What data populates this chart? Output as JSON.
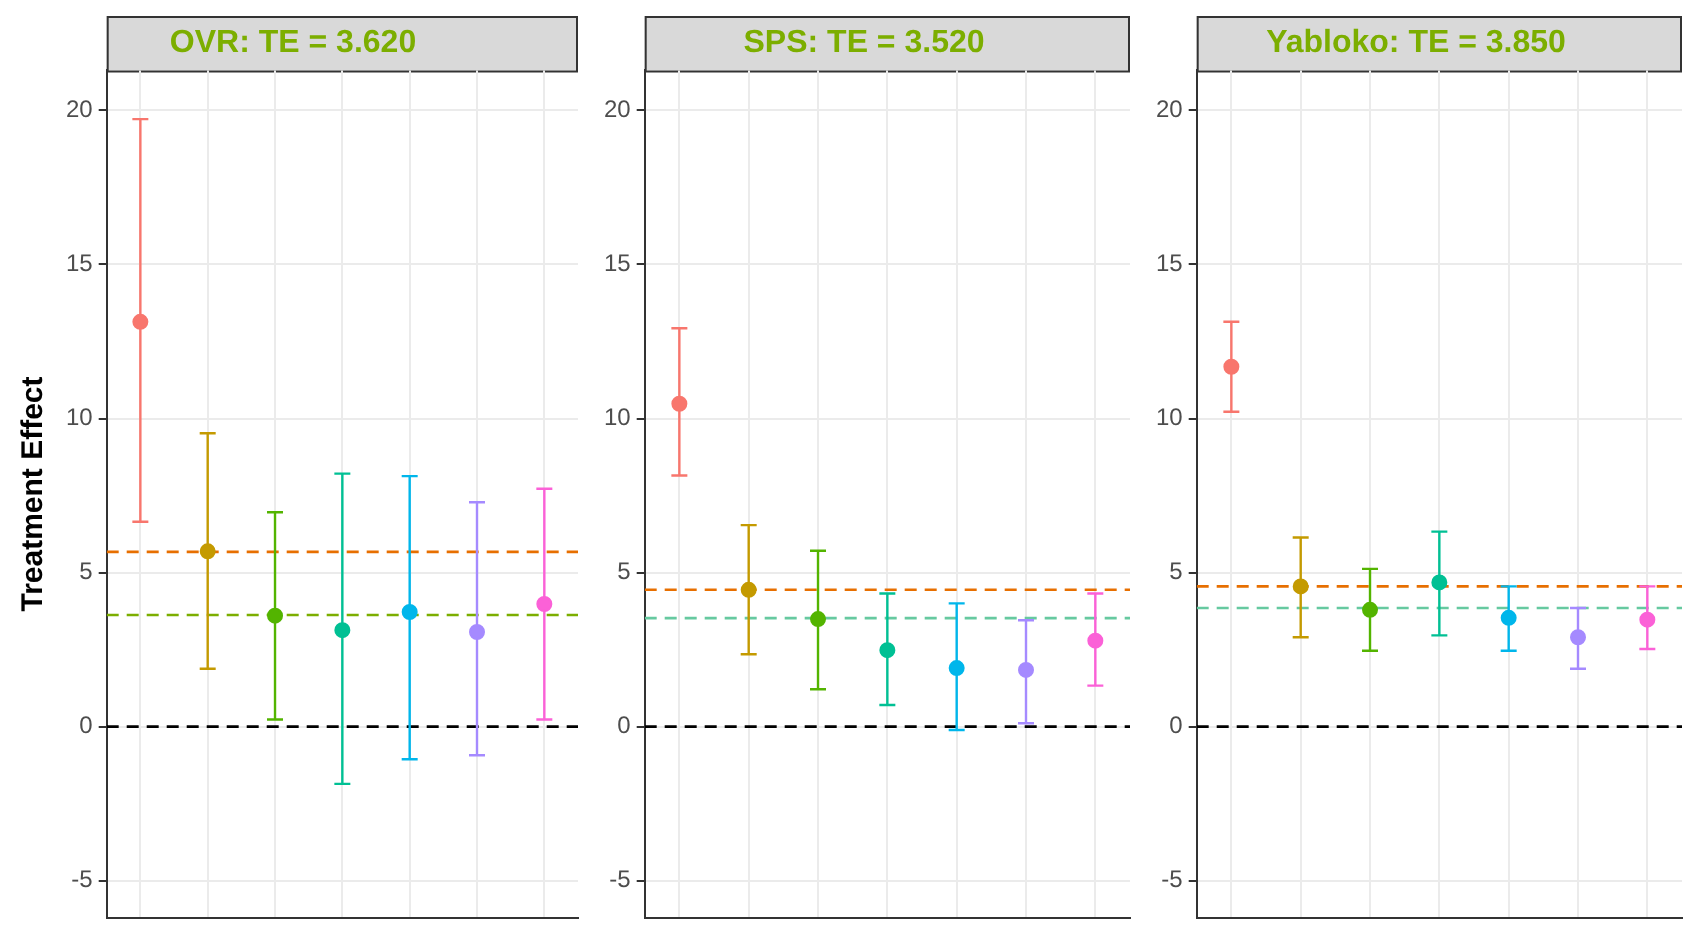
{
  "chart_data": [
    {
      "type": "scatter",
      "title": "OVR: TE = 3.620",
      "ylabel": "Treatment Effect",
      "categories": [
        null,
        null,
        null,
        null,
        null,
        null,
        null
      ],
      "values": [
        13.14,
        5.69,
        3.6,
        3.13,
        3.72,
        3.07,
        3.98
      ],
      "errors": [
        [
          6.65,
          19.72
        ],
        [
          1.88,
          9.52
        ],
        [
          0.23,
          6.96
        ],
        [
          -1.86,
          8.21
        ],
        [
          -1.06,
          8.13
        ],
        [
          -0.93,
          7.28
        ],
        [
          0.23,
          7.72
        ]
      ],
      "colors": [
        "#f8766d",
        "#c49a00",
        "#53b400",
        "#00c094",
        "#00b6eb",
        "#a58aff",
        "#fb61d7"
      ],
      "ylim": [
        -6.2,
        21.3
      ],
      "yticks": [
        -5,
        0,
        5,
        10,
        15,
        20
      ],
      "grid": true,
      "tick_labels": "y",
      "marker": "circle",
      "ref_lines": [
        {
          "axis": "y",
          "value": 0,
          "color": "#000000",
          "line_style": "dashed"
        },
        {
          "axis": "y",
          "value": 5.67,
          "color": "#e76f00",
          "line_style": "dashed"
        },
        {
          "axis": "y",
          "value": 3.62,
          "color": "#7cae00",
          "line_style": "dashed"
        }
      ]
    },
    {
      "type": "scatter",
      "title": "SPS: TE = 3.520",
      "categories": [
        null,
        null,
        null,
        null,
        null,
        null,
        null
      ],
      "values": [
        10.48,
        4.44,
        3.49,
        2.48,
        1.9,
        1.84,
        2.79
      ],
      "errors": [
        [
          8.15,
          12.93
        ],
        [
          2.35,
          6.54
        ],
        [
          1.21,
          5.71
        ],
        [
          0.7,
          4.32
        ],
        [
          -0.11,
          4.0
        ],
        [
          0.11,
          3.45
        ],
        [
          1.33,
          4.32
        ]
      ],
      "colors": [
        "#f8766d",
        "#c49a00",
        "#53b400",
        "#00c094",
        "#00b6eb",
        "#a58aff",
        "#fb61d7"
      ],
      "ylim": [
        -6.2,
        21.3
      ],
      "yticks": [
        -5,
        0,
        5,
        10,
        15,
        20
      ],
      "grid": true,
      "tick_labels": "y",
      "marker": "circle",
      "ref_lines": [
        {
          "axis": "y",
          "value": 0,
          "color": "#000000",
          "line_style": "dashed"
        },
        {
          "axis": "y",
          "value": 4.44,
          "color": "#e76f00",
          "line_style": "dashed"
        },
        {
          "axis": "y",
          "value": 3.52,
          "color": "#66c9a0",
          "line_style": "dashed"
        }
      ]
    },
    {
      "type": "scatter",
      "title": "Yabloko: TE = 3.850",
      "categories": [
        null,
        null,
        null,
        null,
        null,
        null,
        null
      ],
      "values": [
        11.68,
        4.55,
        3.79,
        4.68,
        3.53,
        2.9,
        3.47
      ],
      "errors": [
        [
          10.22,
          13.14
        ],
        [
          2.9,
          6.14
        ],
        [
          2.46,
          5.12
        ],
        [
          2.96,
          6.33
        ],
        [
          2.46,
          4.55
        ],
        [
          1.88,
          3.85
        ],
        [
          2.52,
          4.55
        ]
      ],
      "colors": [
        "#f8766d",
        "#c49a00",
        "#53b400",
        "#00c094",
        "#00b6eb",
        "#a58aff",
        "#fb61d7"
      ],
      "ylim": [
        -6.2,
        21.3
      ],
      "yticks": [
        -5,
        0,
        5,
        10,
        15,
        20
      ],
      "grid": true,
      "tick_labels": "y",
      "marker": "circle",
      "ref_lines": [
        {
          "axis": "y",
          "value": 0,
          "color": "#000000",
          "line_style": "dashed"
        },
        {
          "axis": "y",
          "value": 4.55,
          "color": "#e76f00",
          "line_style": "dashed"
        },
        {
          "axis": "y",
          "value": 3.85,
          "color": "#66c9a0",
          "line_style": "dashed"
        }
      ]
    }
  ]
}
